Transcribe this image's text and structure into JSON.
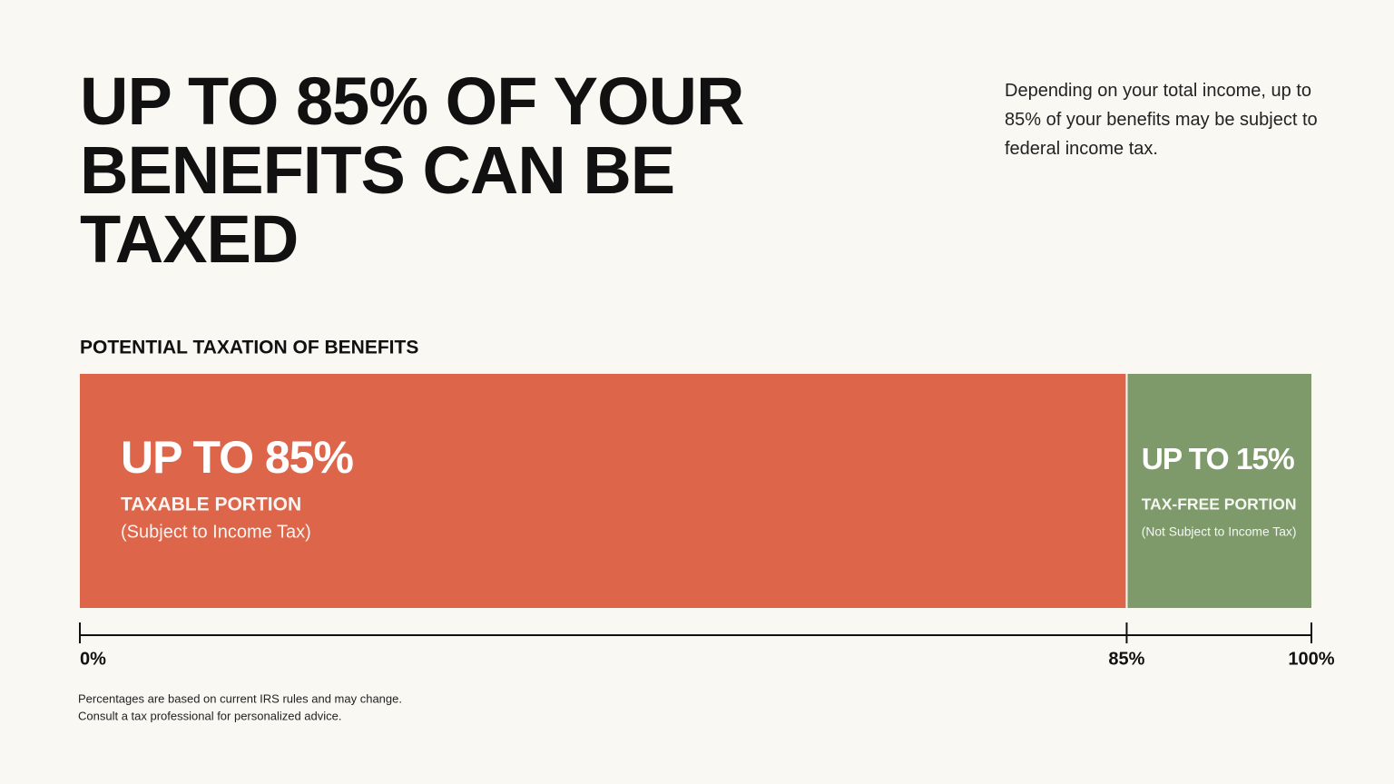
{
  "chart_data": {
    "type": "stacked-bar",
    "title": "UP TO 85% OF YOUR BENEFITS CAN BE TAXED",
    "subtitle": "Depending on your total income, up to 85% of your benefits may be subject to federal income tax.",
    "chart_label": "POTENTIAL TAXATION OF BENEFITS",
    "series": [
      {
        "name": "TAXABLE PORTION",
        "description": "(Subject to Income Tax)",
        "color": "#dd6549",
        "values": [
          85
        ],
        "value_labels": [
          "UP TO 85%"
        ]
      },
      {
        "name": "TAX-FREE PORTION",
        "description": "(Not Subject to Income Tax)",
        "color": "#7e9a6b",
        "values": [
          15
        ],
        "value_labels": [
          "UP TO 15%"
        ]
      }
    ],
    "xlim": [
      0,
      100
    ],
    "xticks": [
      {
        "value": 0,
        "label": "0%"
      },
      {
        "value": 85,
        "label": "85%"
      },
      {
        "value": 100,
        "label": "100%"
      }
    ],
    "footnote": [
      "Percentages are based on current IRS rules and may change.",
      "Consult a tax professional for personalized advice."
    ]
  }
}
